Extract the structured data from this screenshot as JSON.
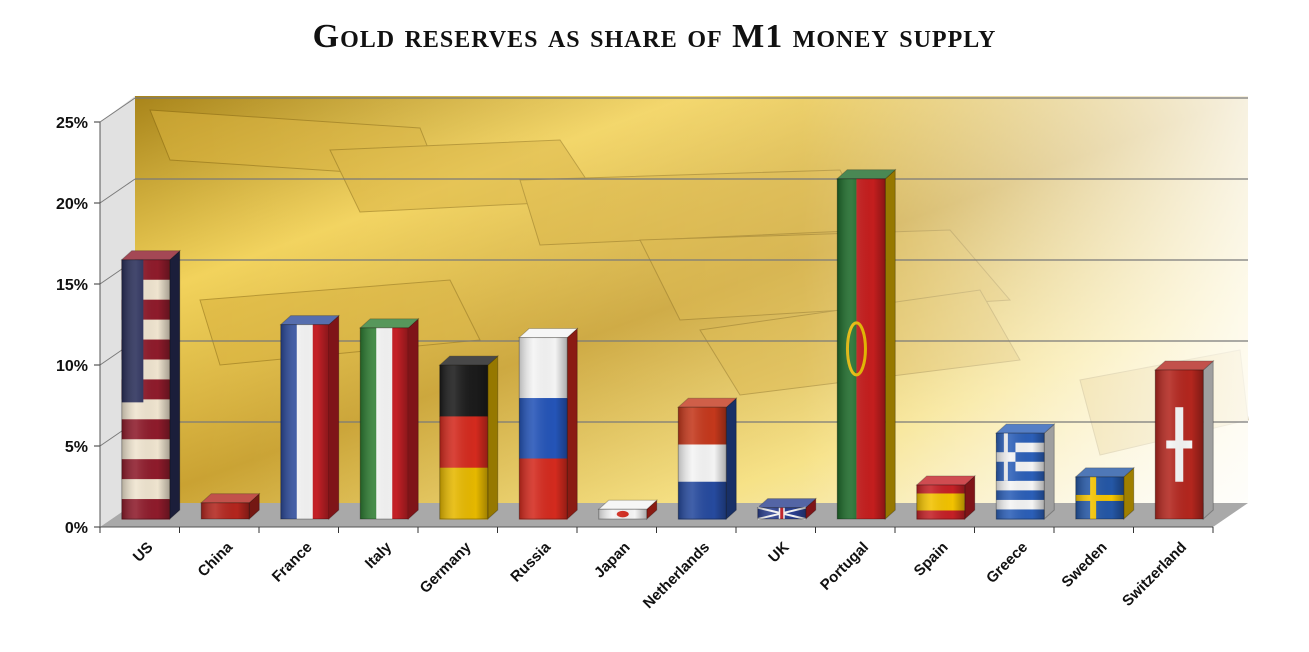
{
  "chart_data": {
    "type": "bar",
    "title": "Gold reserves as share of M1 money supply",
    "xlabel": "",
    "ylabel": "",
    "ylim": [
      0,
      25
    ],
    "yticks": [
      0,
      5,
      10,
      15,
      20,
      25
    ],
    "ytick_labels": [
      "0%",
      "5%",
      "10%",
      "15%",
      "20%",
      "25%"
    ],
    "grid": true,
    "categories": [
      "US",
      "China",
      "France",
      "Italy",
      "Germany",
      "Russia",
      "Japan",
      "Netherlands",
      "UK",
      "Portugal",
      "Spain",
      "Greece",
      "Sweden",
      "Switzerland"
    ],
    "values": [
      16.0,
      1.0,
      12.0,
      11.8,
      9.5,
      11.2,
      0.6,
      6.9,
      0.7,
      21.0,
      2.1,
      5.3,
      2.6,
      9.2
    ],
    "bar_flags": [
      {
        "style": "us",
        "colors": [
          "#8e1b2b",
          "#efe4cf",
          "#2a2f5a"
        ]
      },
      {
        "style": "solid",
        "colors": [
          "#b3261e"
        ]
      },
      {
        "style": "vert",
        "colors": [
          "#2c4a9a",
          "#f4f4f4",
          "#c42026"
        ]
      },
      {
        "style": "vert",
        "colors": [
          "#2e7d32",
          "#f4f4f4",
          "#c42026"
        ]
      },
      {
        "style": "horiz",
        "colors": [
          "#1b1b1b",
          "#d42a1e",
          "#e6b800"
        ]
      },
      {
        "style": "horiz",
        "colors": [
          "#f4f4f4",
          "#2454b8",
          "#d42a1e"
        ]
      },
      {
        "style": "japan",
        "colors": [
          "#f4f4f4",
          "#d42a1e"
        ]
      },
      {
        "style": "horiz",
        "colors": [
          "#c4381c",
          "#f4f4f4",
          "#264a9e"
        ]
      },
      {
        "style": "uk",
        "colors": [
          "#2a3f8f",
          "#f4f4f4",
          "#c42026"
        ]
      },
      {
        "style": "portugal",
        "colors": [
          "#1d6b2a",
          "#c41e1e",
          "#e6b800"
        ]
      },
      {
        "style": "spain",
        "colors": [
          "#c42026",
          "#f2c200",
          "#c42026"
        ]
      },
      {
        "style": "greece",
        "colors": [
          "#2b5fb8",
          "#f4f4f4"
        ]
      },
      {
        "style": "sweden",
        "colors": [
          "#2457a6",
          "#f5c400"
        ]
      },
      {
        "style": "swiss",
        "colors": [
          "#b3261e",
          "#f4f4f4"
        ]
      }
    ]
  }
}
